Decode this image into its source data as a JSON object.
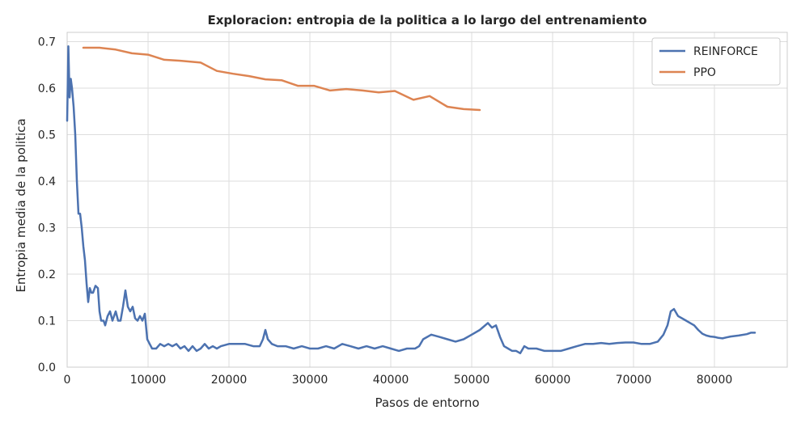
{
  "chart_data": {
    "type": "line",
    "title": "Exploracion: entropia de la politica a lo largo del entrenamiento",
    "xlabel": "Pasos de entorno",
    "ylabel": "Entropia media de la politica",
    "xlim": [
      0,
      89000
    ],
    "ylim": [
      0,
      0.72
    ],
    "xticks": [
      0,
      10000,
      20000,
      30000,
      40000,
      50000,
      60000,
      70000,
      80000
    ],
    "yticks": [
      0.0,
      0.1,
      0.2,
      0.3,
      0.4,
      0.5,
      0.6,
      0.7
    ],
    "xtick_labels": [
      "0",
      "10000",
      "20000",
      "30000",
      "40000",
      "50000",
      "60000",
      "70000",
      "80000"
    ],
    "ytick_labels": [
      "0.0",
      "0.1",
      "0.2",
      "0.3",
      "0.4",
      "0.5",
      "0.6",
      "0.7"
    ],
    "grid": true,
    "legend_position": "top-right",
    "series": [
      {
        "name": "REINFORCE",
        "color": "#4c72b0",
        "points": [
          [
            0,
            0.53
          ],
          [
            150,
            0.69
          ],
          [
            300,
            0.58
          ],
          [
            450,
            0.62
          ],
          [
            600,
            0.6
          ],
          [
            800,
            0.56
          ],
          [
            1000,
            0.5
          ],
          [
            1200,
            0.4
          ],
          [
            1400,
            0.33
          ],
          [
            1600,
            0.33
          ],
          [
            1800,
            0.3
          ],
          [
            2000,
            0.26
          ],
          [
            2200,
            0.23
          ],
          [
            2400,
            0.18
          ],
          [
            2600,
            0.14
          ],
          [
            2800,
            0.17
          ],
          [
            3000,
            0.16
          ],
          [
            3200,
            0.16
          ],
          [
            3500,
            0.175
          ],
          [
            3800,
            0.17
          ],
          [
            4000,
            0.12
          ],
          [
            4200,
            0.1
          ],
          [
            4500,
            0.1
          ],
          [
            4700,
            0.09
          ],
          [
            5000,
            0.11
          ],
          [
            5300,
            0.12
          ],
          [
            5600,
            0.1
          ],
          [
            6000,
            0.12
          ],
          [
            6300,
            0.1
          ],
          [
            6600,
            0.1
          ],
          [
            6900,
            0.13
          ],
          [
            7200,
            0.165
          ],
          [
            7500,
            0.13
          ],
          [
            7800,
            0.12
          ],
          [
            8100,
            0.13
          ],
          [
            8400,
            0.105
          ],
          [
            8700,
            0.1
          ],
          [
            9000,
            0.11
          ],
          [
            9300,
            0.1
          ],
          [
            9600,
            0.115
          ],
          [
            9900,
            0.06
          ],
          [
            10200,
            0.05
          ],
          [
            10500,
            0.04
          ],
          [
            11000,
            0.04
          ],
          [
            11500,
            0.05
          ],
          [
            12000,
            0.045
          ],
          [
            12500,
            0.05
          ],
          [
            13000,
            0.045
          ],
          [
            13500,
            0.05
          ],
          [
            14000,
            0.04
          ],
          [
            14500,
            0.045
          ],
          [
            15000,
            0.035
          ],
          [
            15500,
            0.045
          ],
          [
            16000,
            0.035
          ],
          [
            16500,
            0.04
          ],
          [
            17000,
            0.05
          ],
          [
            17500,
            0.04
          ],
          [
            18000,
            0.045
          ],
          [
            18500,
            0.04
          ],
          [
            19000,
            0.045
          ],
          [
            20000,
            0.05
          ],
          [
            21000,
            0.05
          ],
          [
            22000,
            0.05
          ],
          [
            23000,
            0.045
          ],
          [
            23800,
            0.045
          ],
          [
            24200,
            0.06
          ],
          [
            24500,
            0.08
          ],
          [
            24800,
            0.06
          ],
          [
            25300,
            0.05
          ],
          [
            26000,
            0.045
          ],
          [
            27000,
            0.045
          ],
          [
            28000,
            0.04
          ],
          [
            29000,
            0.045
          ],
          [
            30000,
            0.04
          ],
          [
            31000,
            0.04
          ],
          [
            32000,
            0.045
          ],
          [
            33000,
            0.04
          ],
          [
            34000,
            0.05
          ],
          [
            35000,
            0.045
          ],
          [
            36000,
            0.04
          ],
          [
            37000,
            0.045
          ],
          [
            38000,
            0.04
          ],
          [
            39000,
            0.045
          ],
          [
            40000,
            0.04
          ],
          [
            41000,
            0.035
          ],
          [
            42000,
            0.04
          ],
          [
            43000,
            0.04
          ],
          [
            43500,
            0.045
          ],
          [
            44000,
            0.06
          ],
          [
            45000,
            0.07
          ],
          [
            46000,
            0.065
          ],
          [
            47000,
            0.06
          ],
          [
            48000,
            0.055
          ],
          [
            49000,
            0.06
          ],
          [
            50000,
            0.07
          ],
          [
            51000,
            0.08
          ],
          [
            52000,
            0.095
          ],
          [
            52500,
            0.085
          ],
          [
            53000,
            0.09
          ],
          [
            53500,
            0.065
          ],
          [
            54000,
            0.045
          ],
          [
            54500,
            0.04
          ],
          [
            55000,
            0.035
          ],
          [
            55500,
            0.035
          ],
          [
            56000,
            0.03
          ],
          [
            56500,
            0.045
          ],
          [
            57000,
            0.04
          ],
          [
            58000,
            0.04
          ],
          [
            59000,
            0.035
          ],
          [
            60000,
            0.035
          ],
          [
            61000,
            0.035
          ],
          [
            62000,
            0.04
          ],
          [
            63000,
            0.045
          ],
          [
            64000,
            0.05
          ],
          [
            65000,
            0.05
          ],
          [
            66000,
            0.052
          ],
          [
            67000,
            0.05
          ],
          [
            68000,
            0.052
          ],
          [
            69000,
            0.053
          ],
          [
            70000,
            0.053
          ],
          [
            71000,
            0.05
          ],
          [
            72000,
            0.05
          ],
          [
            73000,
            0.055
          ],
          [
            73700,
            0.07
          ],
          [
            74200,
            0.09
          ],
          [
            74600,
            0.12
          ],
          [
            75000,
            0.125
          ],
          [
            75500,
            0.11
          ],
          [
            76000,
            0.105
          ],
          [
            76500,
            0.1
          ],
          [
            77000,
            0.095
          ],
          [
            77500,
            0.09
          ],
          [
            78000,
            0.08
          ],
          [
            78500,
            0.072
          ],
          [
            79000,
            0.068
          ],
          [
            79500,
            0.066
          ],
          [
            80000,
            0.065
          ],
          [
            80500,
            0.063
          ],
          [
            81000,
            0.062
          ],
          [
            81500,
            0.064
          ],
          [
            82000,
            0.066
          ],
          [
            83000,
            0.068
          ],
          [
            84000,
            0.071
          ],
          [
            84500,
            0.074
          ],
          [
            85000,
            0.074
          ]
        ]
      },
      {
        "name": "PPO",
        "color": "#dd8452",
        "points": [
          [
            2000,
            0.687
          ],
          [
            4000,
            0.687
          ],
          [
            6000,
            0.683
          ],
          [
            8000,
            0.675
          ],
          [
            10000,
            0.672
          ],
          [
            12000,
            0.661
          ],
          [
            14000,
            0.659
          ],
          [
            16500,
            0.655
          ],
          [
            18500,
            0.637
          ],
          [
            20500,
            0.631
          ],
          [
            22500,
            0.626
          ],
          [
            24500,
            0.619
          ],
          [
            26500,
            0.617
          ],
          [
            28500,
            0.605
          ],
          [
            30500,
            0.605
          ],
          [
            32500,
            0.595
          ],
          [
            34500,
            0.598
          ],
          [
            36500,
            0.595
          ],
          [
            38500,
            0.591
          ],
          [
            40500,
            0.594
          ],
          [
            42800,
            0.575
          ],
          [
            44800,
            0.583
          ],
          [
            47000,
            0.56
          ],
          [
            49000,
            0.555
          ],
          [
            51000,
            0.553
          ]
        ]
      }
    ]
  }
}
